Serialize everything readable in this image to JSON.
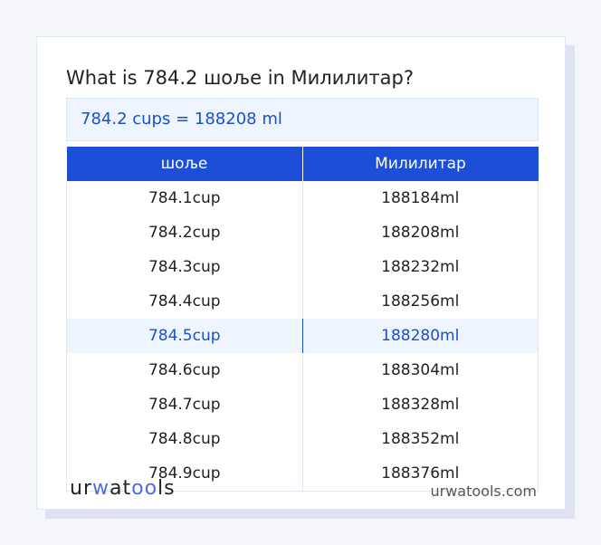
{
  "title": "What is 784.2 шоље in Милилитар?",
  "result": "784.2 cups = 188208 ml",
  "table": {
    "headers": [
      "шоље",
      "Милилитар"
    ],
    "rows": [
      [
        "784.1cup",
        "188184ml"
      ],
      [
        "784.2cup",
        "188208ml"
      ],
      [
        "784.3cup",
        "188232ml"
      ],
      [
        "784.4cup",
        "188256ml"
      ],
      [
        "784.5cup",
        "188280ml"
      ],
      [
        "784.6cup",
        "188304ml"
      ],
      [
        "784.7cup",
        "188328ml"
      ],
      [
        "784.8cup",
        "188352ml"
      ],
      [
        "784.9cup",
        "188376ml"
      ]
    ],
    "highlighted_row": 4
  },
  "footer": {
    "logo": "urwatools",
    "site": "urwatools.com"
  },
  "colors": {
    "accent": "#1c4fd6",
    "highlight_bg": "#eef5ff"
  }
}
